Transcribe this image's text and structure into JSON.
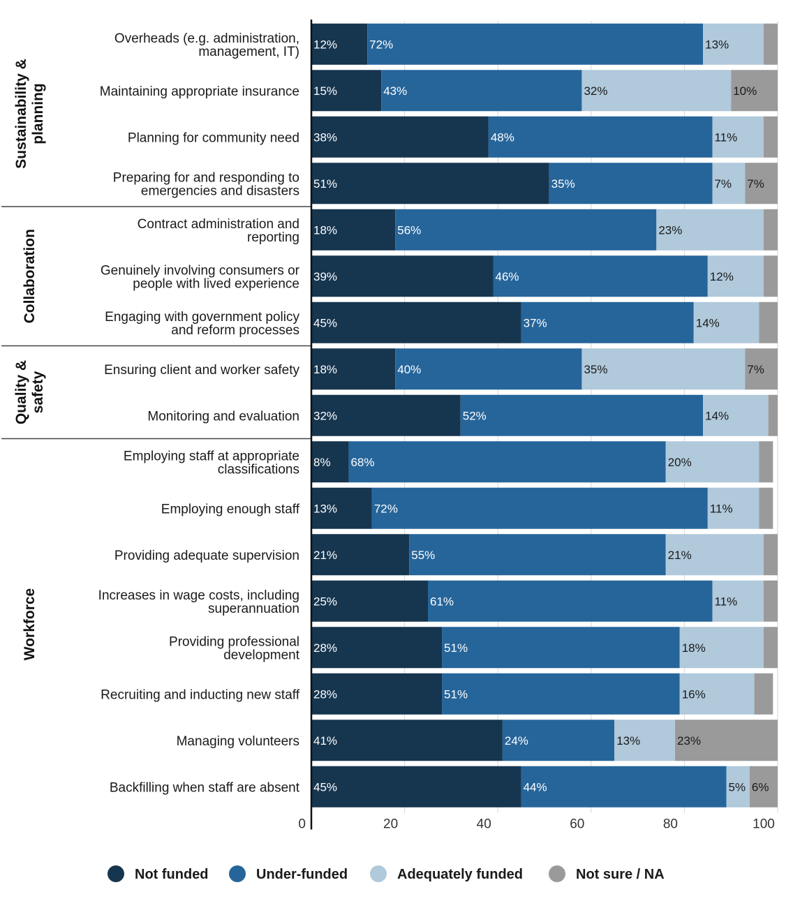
{
  "chart_data": {
    "type": "bar",
    "orientation": "horizontal",
    "stacked": true,
    "xlim": [
      0,
      100
    ],
    "x_ticks": [
      "0",
      "20",
      "40",
      "60",
      "80",
      "100"
    ],
    "grid": true,
    "legend_position": "bottom",
    "groups": [
      {
        "name": "Sustainability & planning",
        "lines": [
          "Sustainability &",
          "planning"
        ],
        "start": 0,
        "end": 3
      },
      {
        "name": "Collaboration",
        "lines": [
          "Collaboration"
        ],
        "start": 4,
        "end": 6
      },
      {
        "name": "Quality & safety",
        "lines": [
          "Quality &",
          "safety"
        ],
        "start": 7,
        "end": 8
      },
      {
        "name": "Workforce",
        "lines": [
          "Workforce"
        ],
        "start": 9,
        "end": 16
      }
    ],
    "categories": [
      "Overheads (e.g. administration, management, IT)",
      "Maintaining appropriate insurance",
      "Planning for community need",
      "Preparing for and responding to emergencies and disasters",
      "Contract administration and reporting",
      "Genuinely involving consumers or people with lived experience",
      "Engaging with government policy and reform processes",
      "Ensuring client and worker safety",
      "Monitoring and evaluation",
      "Employing staff at appropriate classifications",
      "Employing enough staff",
      "Providing adequate supervision",
      "Increases in wage costs, including superannuation",
      "Providing professional development",
      "Recruiting and inducting new staff",
      "Managing volunteers",
      "Backfilling when staff are absent"
    ],
    "category_lines": [
      [
        "Overheads (e.g. administration,",
        "management, IT)"
      ],
      [
        "Maintaining appropriate insurance"
      ],
      [
        "Planning for community need"
      ],
      [
        "Preparing for and responding to",
        "emergencies and disasters"
      ],
      [
        "Contract administration and",
        "reporting"
      ],
      [
        "Genuinely involving consumers or",
        "people with lived experience"
      ],
      [
        "Engaging with government policy",
        "and reform processes"
      ],
      [
        "Ensuring client and worker safety"
      ],
      [
        "Monitoring and evaluation"
      ],
      [
        "Employing staff at appropriate",
        "classifications"
      ],
      [
        "Employing enough staff"
      ],
      [
        "Providing adequate supervision"
      ],
      [
        "Increases in wage costs, including",
        "superannuation"
      ],
      [
        "Providing professional",
        "development"
      ],
      [
        "Recruiting and inducting new staff"
      ],
      [
        "Managing volunteers"
      ],
      [
        "Backfilling when staff are absent"
      ]
    ],
    "series": [
      {
        "name": "Not funded",
        "color": "#16354f",
        "values": [
          12,
          15,
          38,
          51,
          18,
          39,
          45,
          18,
          32,
          8,
          13,
          21,
          25,
          28,
          28,
          41,
          45
        ],
        "labels": [
          "12%",
          "15%",
          "38%",
          "51%",
          "18%",
          "39%",
          "45%",
          "18%",
          "32%",
          "8%",
          "13%",
          "21%",
          "25%",
          "28%",
          "28%",
          "41%",
          "45%"
        ]
      },
      {
        "name": "Under-funded",
        "color": "#26659a",
        "values": [
          72,
          43,
          48,
          35,
          56,
          46,
          37,
          40,
          52,
          68,
          72,
          55,
          61,
          51,
          51,
          24,
          44
        ],
        "labels": [
          "72%",
          "43%",
          "48%",
          "35%",
          "56%",
          "46%",
          "37%",
          "40%",
          "52%",
          "68%",
          "72%",
          "55%",
          "61%",
          "51%",
          "51%",
          "24%",
          "44%"
        ]
      },
      {
        "name": "Adequately funded",
        "color": "#b0c9db",
        "values": [
          13,
          32,
          11,
          7,
          23,
          12,
          14,
          35,
          14,
          20,
          11,
          21,
          11,
          18,
          16,
          13,
          5
        ],
        "labels": [
          "13%",
          "32%",
          "11%",
          "7%",
          "23%",
          "12%",
          "14%",
          "35%",
          "14%",
          "20%",
          "11%",
          "21%",
          "11%",
          "18%",
          "16%",
          "13%",
          "5%"
        ]
      },
      {
        "name": "Not sure / NA",
        "color": "#9a9a9a",
        "values": [
          3,
          10,
          3,
          7,
          3,
          3,
          4,
          7,
          2,
          3,
          3,
          3,
          3,
          3,
          4,
          23,
          6
        ],
        "labels": [
          "",
          "10%",
          "",
          "7%",
          "",
          "",
          "",
          "7%",
          "",
          "",
          "",
          "",
          "",
          "",
          "",
          "23%",
          "6%"
        ]
      }
    ]
  }
}
